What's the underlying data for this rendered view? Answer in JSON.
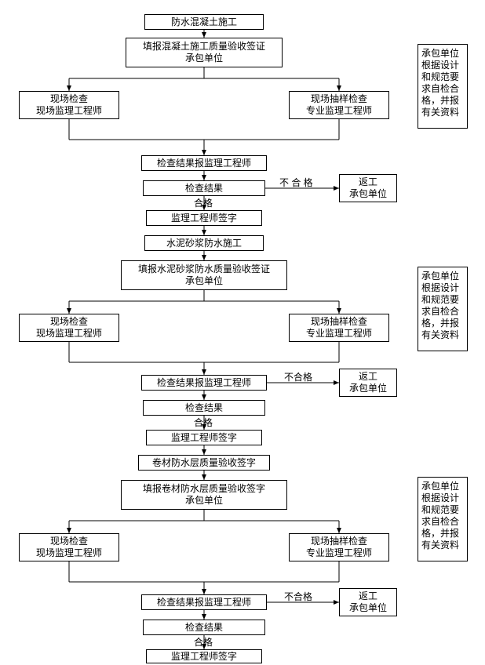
{
  "fontsize_box": 12,
  "fontsize_label": 12,
  "nodes": {
    "n1": {
      "text": "防水混凝土施工"
    },
    "n2": {
      "text": "填报混凝土施工质量验收签证\n承包单位"
    },
    "n3a": {
      "text": "现场检查\n现场监理工程师"
    },
    "n3b": {
      "text": "现场抽样检查\n专业监理工程师"
    },
    "n4": {
      "text": "检查结果报监理工程师"
    },
    "n5": {
      "text": "检查结果"
    },
    "n6": {
      "text": "监理工程师签字"
    },
    "n7": {
      "text": "水泥砂浆防水施工"
    },
    "n8": {
      "text": "填报水泥砂浆防水质量验收签证\n承包单位"
    },
    "n9a": {
      "text": "现场检查\n现场监理工程师"
    },
    "n9b": {
      "text": "现场抽样检查\n专业监理工程师"
    },
    "n10": {
      "text": "检查结果报监理工程师"
    },
    "n11": {
      "text": "检查结果"
    },
    "n12": {
      "text": "监理工程师签字"
    },
    "n13": {
      "text": "卷材防水层质量验收签字"
    },
    "n14": {
      "text": "填报卷材防水层质量验收签字\n承包单位"
    },
    "n15a": {
      "text": "现场检查\n现场监理工程师"
    },
    "n15b": {
      "text": "现场抽样检查\n专业监理工程师"
    },
    "n16": {
      "text": "检查结果报监理工程师"
    },
    "n17": {
      "text": "检查结果"
    },
    "n18": {
      "text": "监理工程师签字"
    },
    "r1": {
      "text": "返工\n承包单位"
    },
    "r2": {
      "text": "返工\n承包单位"
    },
    "r3": {
      "text": "返工\n承包单位"
    },
    "s1": {
      "text": "承包单位\n根据设计\n和规范要\n求自检合\n格，并报\n有关资料"
    },
    "s2": {
      "text": "承包单位\n根据设计\n和规范要\n求自检合\n格，并报\n有关资料"
    },
    "s3": {
      "text": "承包单位\n根据设计\n和规范要\n求自检合\n格，并报\n有关资料"
    }
  },
  "labels": {
    "fail1": "不 合 格",
    "fail2": "不合格",
    "fail3": "不合格",
    "pass1": "合格",
    "pass2": "合格",
    "pass3": "合格"
  }
}
